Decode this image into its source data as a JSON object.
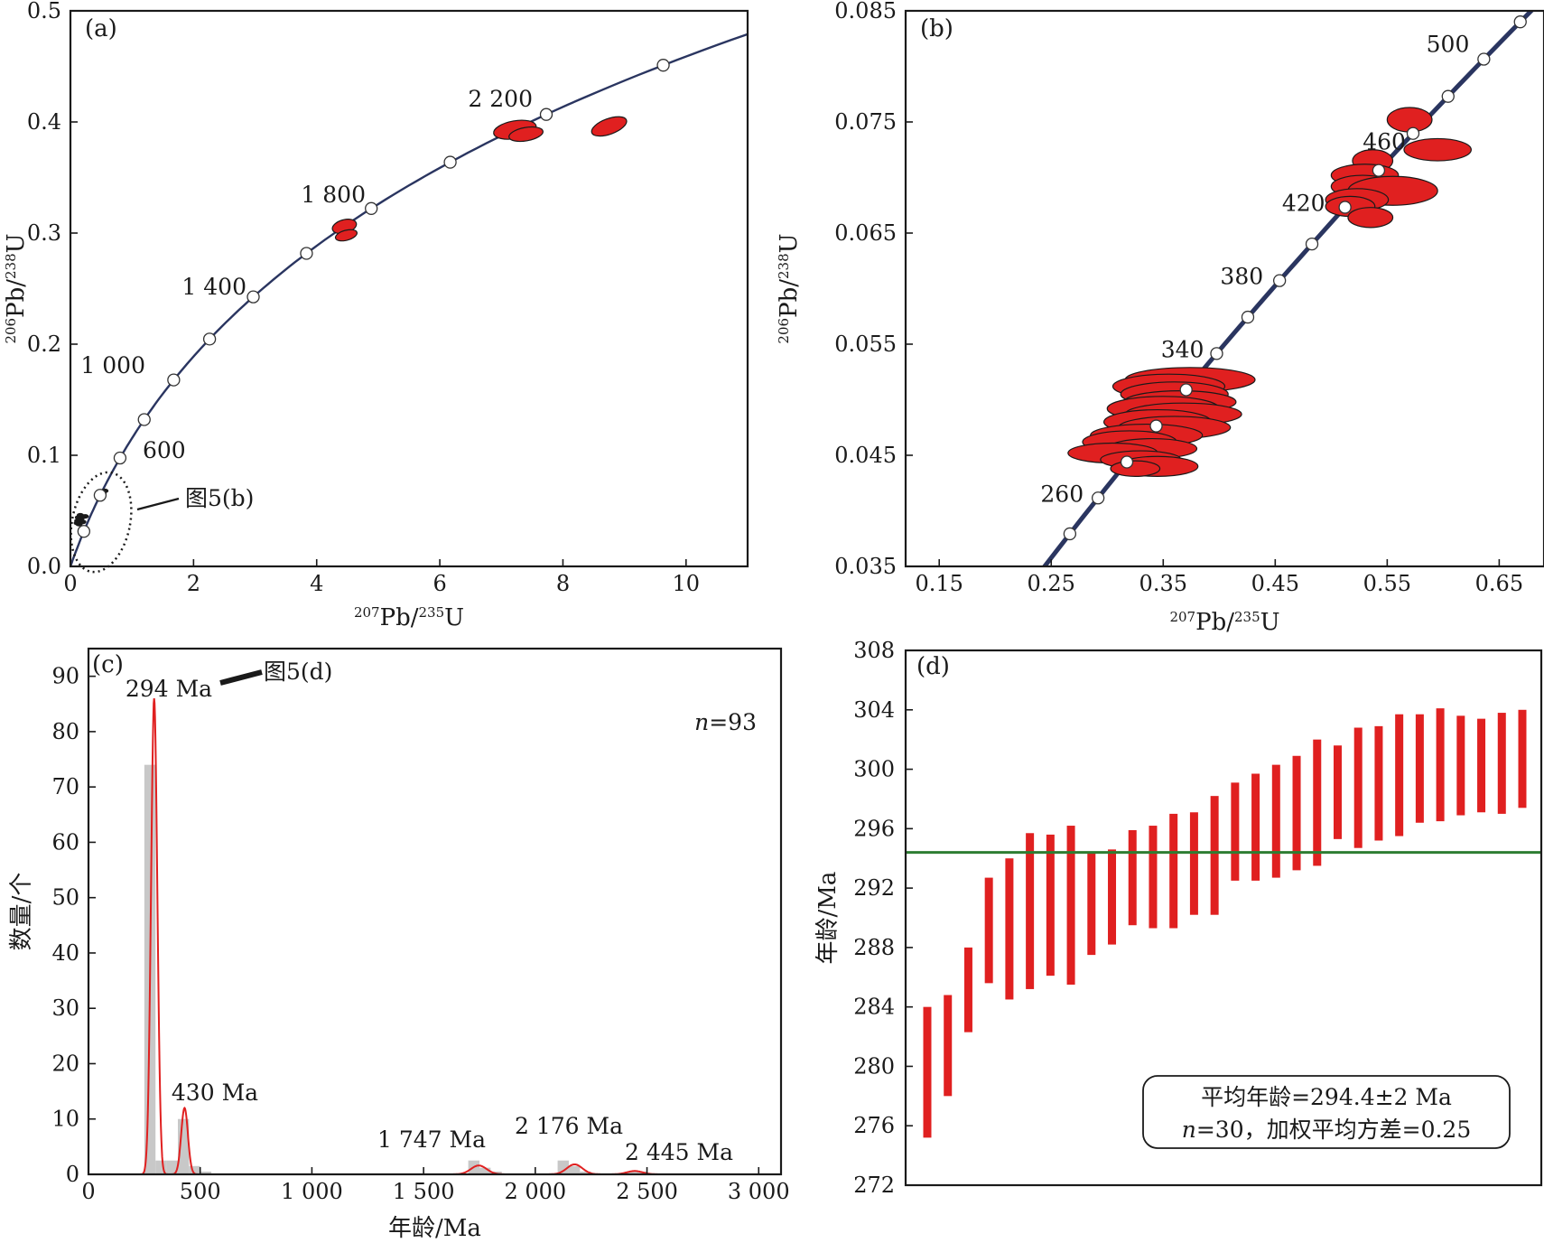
{
  "colors": {
    "ellipse": "#e02020",
    "concordia": "#2a3560",
    "histogram": "#c8c8c8",
    "kde": "#e02020",
    "mean_line": "#2e7d32",
    "error_bar": "#e02020"
  },
  "chart_data": [
    {
      "panel": "(a)",
      "type": "scatter",
      "xlabel": {
        "mass": "207",
        "elem": "Pb/",
        "mass2": "235",
        "elem2": "U"
      },
      "ylabel": {
        "mass": "206",
        "elem": "Pb/",
        "mass2": "238",
        "elem2": "U"
      },
      "xlim": [
        0,
        11
      ],
      "ylim": [
        0,
        0.5
      ],
      "xticks": [
        "0",
        "2",
        "4",
        "6",
        "8",
        "10"
      ],
      "yticks": [
        "0.0",
        "0.1",
        "0.2",
        "0.3",
        "0.4",
        "0.5"
      ],
      "concordia_ages_ma": [
        200,
        400,
        600,
        800,
        1000,
        1200,
        1400,
        1600,
        1800,
        2000,
        2200,
        2400
      ],
      "age_labels": [
        "600",
        "1 000",
        "1 400",
        "1 800",
        "2 200"
      ],
      "ellipses": [
        {
          "x": 4.45,
          "y": 0.306,
          "rx": 0.2,
          "ry": 0.006,
          "angle_deg": -15
        },
        {
          "x": 4.48,
          "y": 0.298,
          "rx": 0.18,
          "ry": 0.0045,
          "angle_deg": -15
        },
        {
          "x": 7.22,
          "y": 0.393,
          "rx": 0.35,
          "ry": 0.008,
          "angle_deg": -10
        },
        {
          "x": 7.4,
          "y": 0.389,
          "rx": 0.28,
          "ry": 0.006,
          "angle_deg": -10
        },
        {
          "x": 8.75,
          "y": 0.396,
          "rx": 0.3,
          "ry": 0.007,
          "angle_deg": -20
        }
      ],
      "young_cluster": [
        {
          "x": 0.17,
          "y": 0.043
        },
        {
          "x": 0.2,
          "y": 0.04
        },
        {
          "x": 0.14,
          "y": 0.038
        },
        {
          "x": 0.12,
          "y": 0.041
        },
        {
          "x": 0.13,
          "y": 0.044
        },
        {
          "x": 0.24,
          "y": 0.045
        },
        {
          "x": 0.11,
          "y": 0.039
        },
        {
          "x": 0.16,
          "y": 0.046
        },
        {
          "x": 0.53,
          "y": 0.066
        },
        {
          "x": 0.56,
          "y": 0.068
        },
        {
          "x": 0.5,
          "y": 0.063
        }
      ],
      "inset_note": "图5(b)"
    },
    {
      "panel": "(b)",
      "type": "scatter",
      "xlabel": {
        "mass": "207",
        "elem": "Pb/",
        "mass2": "235",
        "elem2": "U"
      },
      "ylabel": {
        "mass": "206",
        "elem": "Pb/",
        "mass2": "238",
        "elem2": "U"
      },
      "xlim": [
        0.12,
        0.69
      ],
      "ylim": [
        0.035,
        0.085
      ],
      "xticks": [
        "0.15",
        "0.25",
        "0.35",
        "0.45",
        "0.55",
        "0.65"
      ],
      "yticks": [
        "0.035",
        "0.045",
        "0.055",
        "0.065",
        "0.075",
        "0.085"
      ],
      "concordia_ages_ma": [
        240,
        260,
        280,
        300,
        320,
        340,
        360,
        380,
        400,
        420,
        440,
        460,
        480,
        500,
        520
      ],
      "age_labels": [
        {
          "age": 260,
          "text": "260"
        },
        {
          "age": 340,
          "text": "340"
        },
        {
          "age": 380,
          "text": "380"
        },
        {
          "age": 420,
          "text": "420"
        },
        {
          "age": 460,
          "text": "460"
        },
        {
          "age": 500,
          "text": "500"
        }
      ],
      "ellipses": [
        {
          "x": 0.374,
          "y": 0.0518,
          "rx": 0.058,
          "ry": 0.0011
        },
        {
          "x": 0.355,
          "y": 0.0512,
          "rx": 0.05,
          "ry": 0.0011
        },
        {
          "x": 0.36,
          "y": 0.0505,
          "rx": 0.048,
          "ry": 0.0011
        },
        {
          "x": 0.365,
          "y": 0.0498,
          "rx": 0.05,
          "ry": 0.001
        },
        {
          "x": 0.35,
          "y": 0.0492,
          "rx": 0.05,
          "ry": 0.0011
        },
        {
          "x": 0.368,
          "y": 0.0487,
          "rx": 0.052,
          "ry": 0.001
        },
        {
          "x": 0.345,
          "y": 0.048,
          "rx": 0.048,
          "ry": 0.0011
        },
        {
          "x": 0.36,
          "y": 0.0475,
          "rx": 0.05,
          "ry": 0.001
        },
        {
          "x": 0.335,
          "y": 0.0468,
          "rx": 0.05,
          "ry": 0.001
        },
        {
          "x": 0.32,
          "y": 0.0462,
          "rx": 0.042,
          "ry": 0.001
        },
        {
          "x": 0.34,
          "y": 0.0456,
          "rx": 0.04,
          "ry": 0.0009
        },
        {
          "x": 0.305,
          "y": 0.0452,
          "rx": 0.04,
          "ry": 0.0009
        },
        {
          "x": 0.33,
          "y": 0.0446,
          "rx": 0.036,
          "ry": 0.0008
        },
        {
          "x": 0.345,
          "y": 0.044,
          "rx": 0.036,
          "ry": 0.0009
        },
        {
          "x": 0.325,
          "y": 0.0438,
          "rx": 0.022,
          "ry": 0.0007
        },
        {
          "x": 0.57,
          "y": 0.0752,
          "rx": 0.02,
          "ry": 0.0011
        },
        {
          "x": 0.595,
          "y": 0.0725,
          "rx": 0.03,
          "ry": 0.001
        },
        {
          "x": 0.537,
          "y": 0.0715,
          "rx": 0.018,
          "ry": 0.001
        },
        {
          "x": 0.53,
          "y": 0.0702,
          "rx": 0.03,
          "ry": 0.001
        },
        {
          "x": 0.528,
          "y": 0.0692,
          "rx": 0.028,
          "ry": 0.001
        },
        {
          "x": 0.555,
          "y": 0.0688,
          "rx": 0.04,
          "ry": 0.0013
        },
        {
          "x": 0.523,
          "y": 0.068,
          "rx": 0.028,
          "ry": 0.001
        },
        {
          "x": 0.517,
          "y": 0.0674,
          "rx": 0.022,
          "ry": 0.0009
        },
        {
          "x": 0.535,
          "y": 0.0664,
          "rx": 0.02,
          "ry": 0.0009
        }
      ]
    },
    {
      "panel": "(c)",
      "type": "bar",
      "xlabel": "年龄/Ma",
      "ylabel": "数量/个",
      "xlim": [
        0,
        3100
      ],
      "ylim": [
        0,
        95
      ],
      "xticks": [
        "0",
        "500",
        "1 000",
        "1 500",
        "2 000",
        "2 500",
        "3 000"
      ],
      "yticks": [
        "0",
        "10",
        "20",
        "30",
        "40",
        "50",
        "60",
        "70",
        "80",
        "90"
      ],
      "n_label": {
        "italic": "n",
        "text": "=93"
      },
      "histogram": [
        {
          "x": 275,
          "count": 74
        },
        {
          "x": 325,
          "count": 2.5
        },
        {
          "x": 375,
          "count": 2.5
        },
        {
          "x": 425,
          "count": 10
        },
        {
          "x": 475,
          "count": 1.5
        },
        {
          "x": 525,
          "count": 0.5
        },
        {
          "x": 1725,
          "count": 2.5
        },
        {
          "x": 1775,
          "count": 1.2
        },
        {
          "x": 1825,
          "count": 0.5
        },
        {
          "x": 2125,
          "count": 2.5
        },
        {
          "x": 2175,
          "count": 1.5
        },
        {
          "x": 2225,
          "count": 0.5
        },
        {
          "x": 2425,
          "count": 0.5
        },
        {
          "x": 2475,
          "count": 0.5
        }
      ],
      "kde_peaks": [
        {
          "mu": 294,
          "sigma": 14,
          "amp": 86
        },
        {
          "mu": 430,
          "sigma": 15,
          "amp": 12
        },
        {
          "mu": 1747,
          "sigma": 35,
          "amp": 1.6
        },
        {
          "mu": 2176,
          "sigma": 35,
          "amp": 1.8
        },
        {
          "mu": 2445,
          "sigma": 35,
          "amp": 0.6
        }
      ],
      "peak_labels": [
        "294 Ma",
        "430 Ma",
        "1 747 Ma",
        "2 176 Ma",
        "2 445 Ma"
      ],
      "inset_note": "图5(d)"
    },
    {
      "panel": "(d)",
      "type": "bar",
      "ylabel": "年龄/Ma",
      "ylim": [
        272,
        308
      ],
      "yticks": [
        "272",
        "276",
        "280",
        "284",
        "288",
        "292",
        "296",
        "300",
        "304",
        "308"
      ],
      "mean_age": 294.4,
      "ranges": [
        [
          275.2,
          284.0
        ],
        [
          278.0,
          284.8
        ],
        [
          282.3,
          288.0
        ],
        [
          285.6,
          292.7
        ],
        [
          284.5,
          294.0
        ],
        [
          285.2,
          295.7
        ],
        [
          286.1,
          295.6
        ],
        [
          285.5,
          296.2
        ],
        [
          287.5,
          294.4
        ],
        [
          288.2,
          294.6
        ],
        [
          289.5,
          295.9
        ],
        [
          289.3,
          296.2
        ],
        [
          289.3,
          297.0
        ],
        [
          290.2,
          297.1
        ],
        [
          290.2,
          298.2
        ],
        [
          292.5,
          299.1
        ],
        [
          292.5,
          299.7
        ],
        [
          292.7,
          300.3
        ],
        [
          293.2,
          300.9
        ],
        [
          293.5,
          302.0
        ],
        [
          295.3,
          301.6
        ],
        [
          294.7,
          302.8
        ],
        [
          295.2,
          302.9
        ],
        [
          295.5,
          303.7
        ],
        [
          296.4,
          303.7
        ],
        [
          296.5,
          304.1
        ],
        [
          296.9,
          303.6
        ],
        [
          297.1,
          303.4
        ],
        [
          297.0,
          303.8
        ],
        [
          297.4,
          304.0
        ]
      ],
      "stats_line1": "平均年龄=294.4±2 Ma",
      "stats_line2": {
        "italic": "n",
        "text": "=30，加权平均方差=0.25"
      }
    }
  ]
}
